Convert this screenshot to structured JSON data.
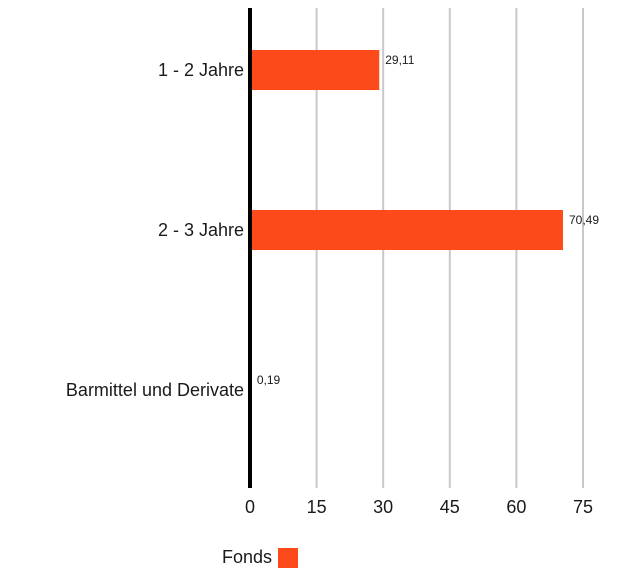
{
  "chart_data": {
    "type": "bar",
    "orientation": "horizontal",
    "categories": [
      "1 - 2 Jahre",
      "2 - 3 Jahre",
      "Barmittel und Derivate"
    ],
    "series": [
      {
        "name": "Fonds",
        "values": [
          29.11,
          70.49,
          0.19
        ],
        "value_labels": [
          "29,11",
          "70,49",
          "0,19"
        ],
        "color": "#fc4a1a"
      }
    ],
    "x_ticks": [
      0,
      15,
      30,
      45,
      60,
      75
    ],
    "xlim": [
      0,
      75
    ],
    "grid": true,
    "legend": "bottom"
  },
  "colors": {
    "bar": "#fc4a1a",
    "axis": "#000000",
    "grid": "#c8c8c8"
  }
}
